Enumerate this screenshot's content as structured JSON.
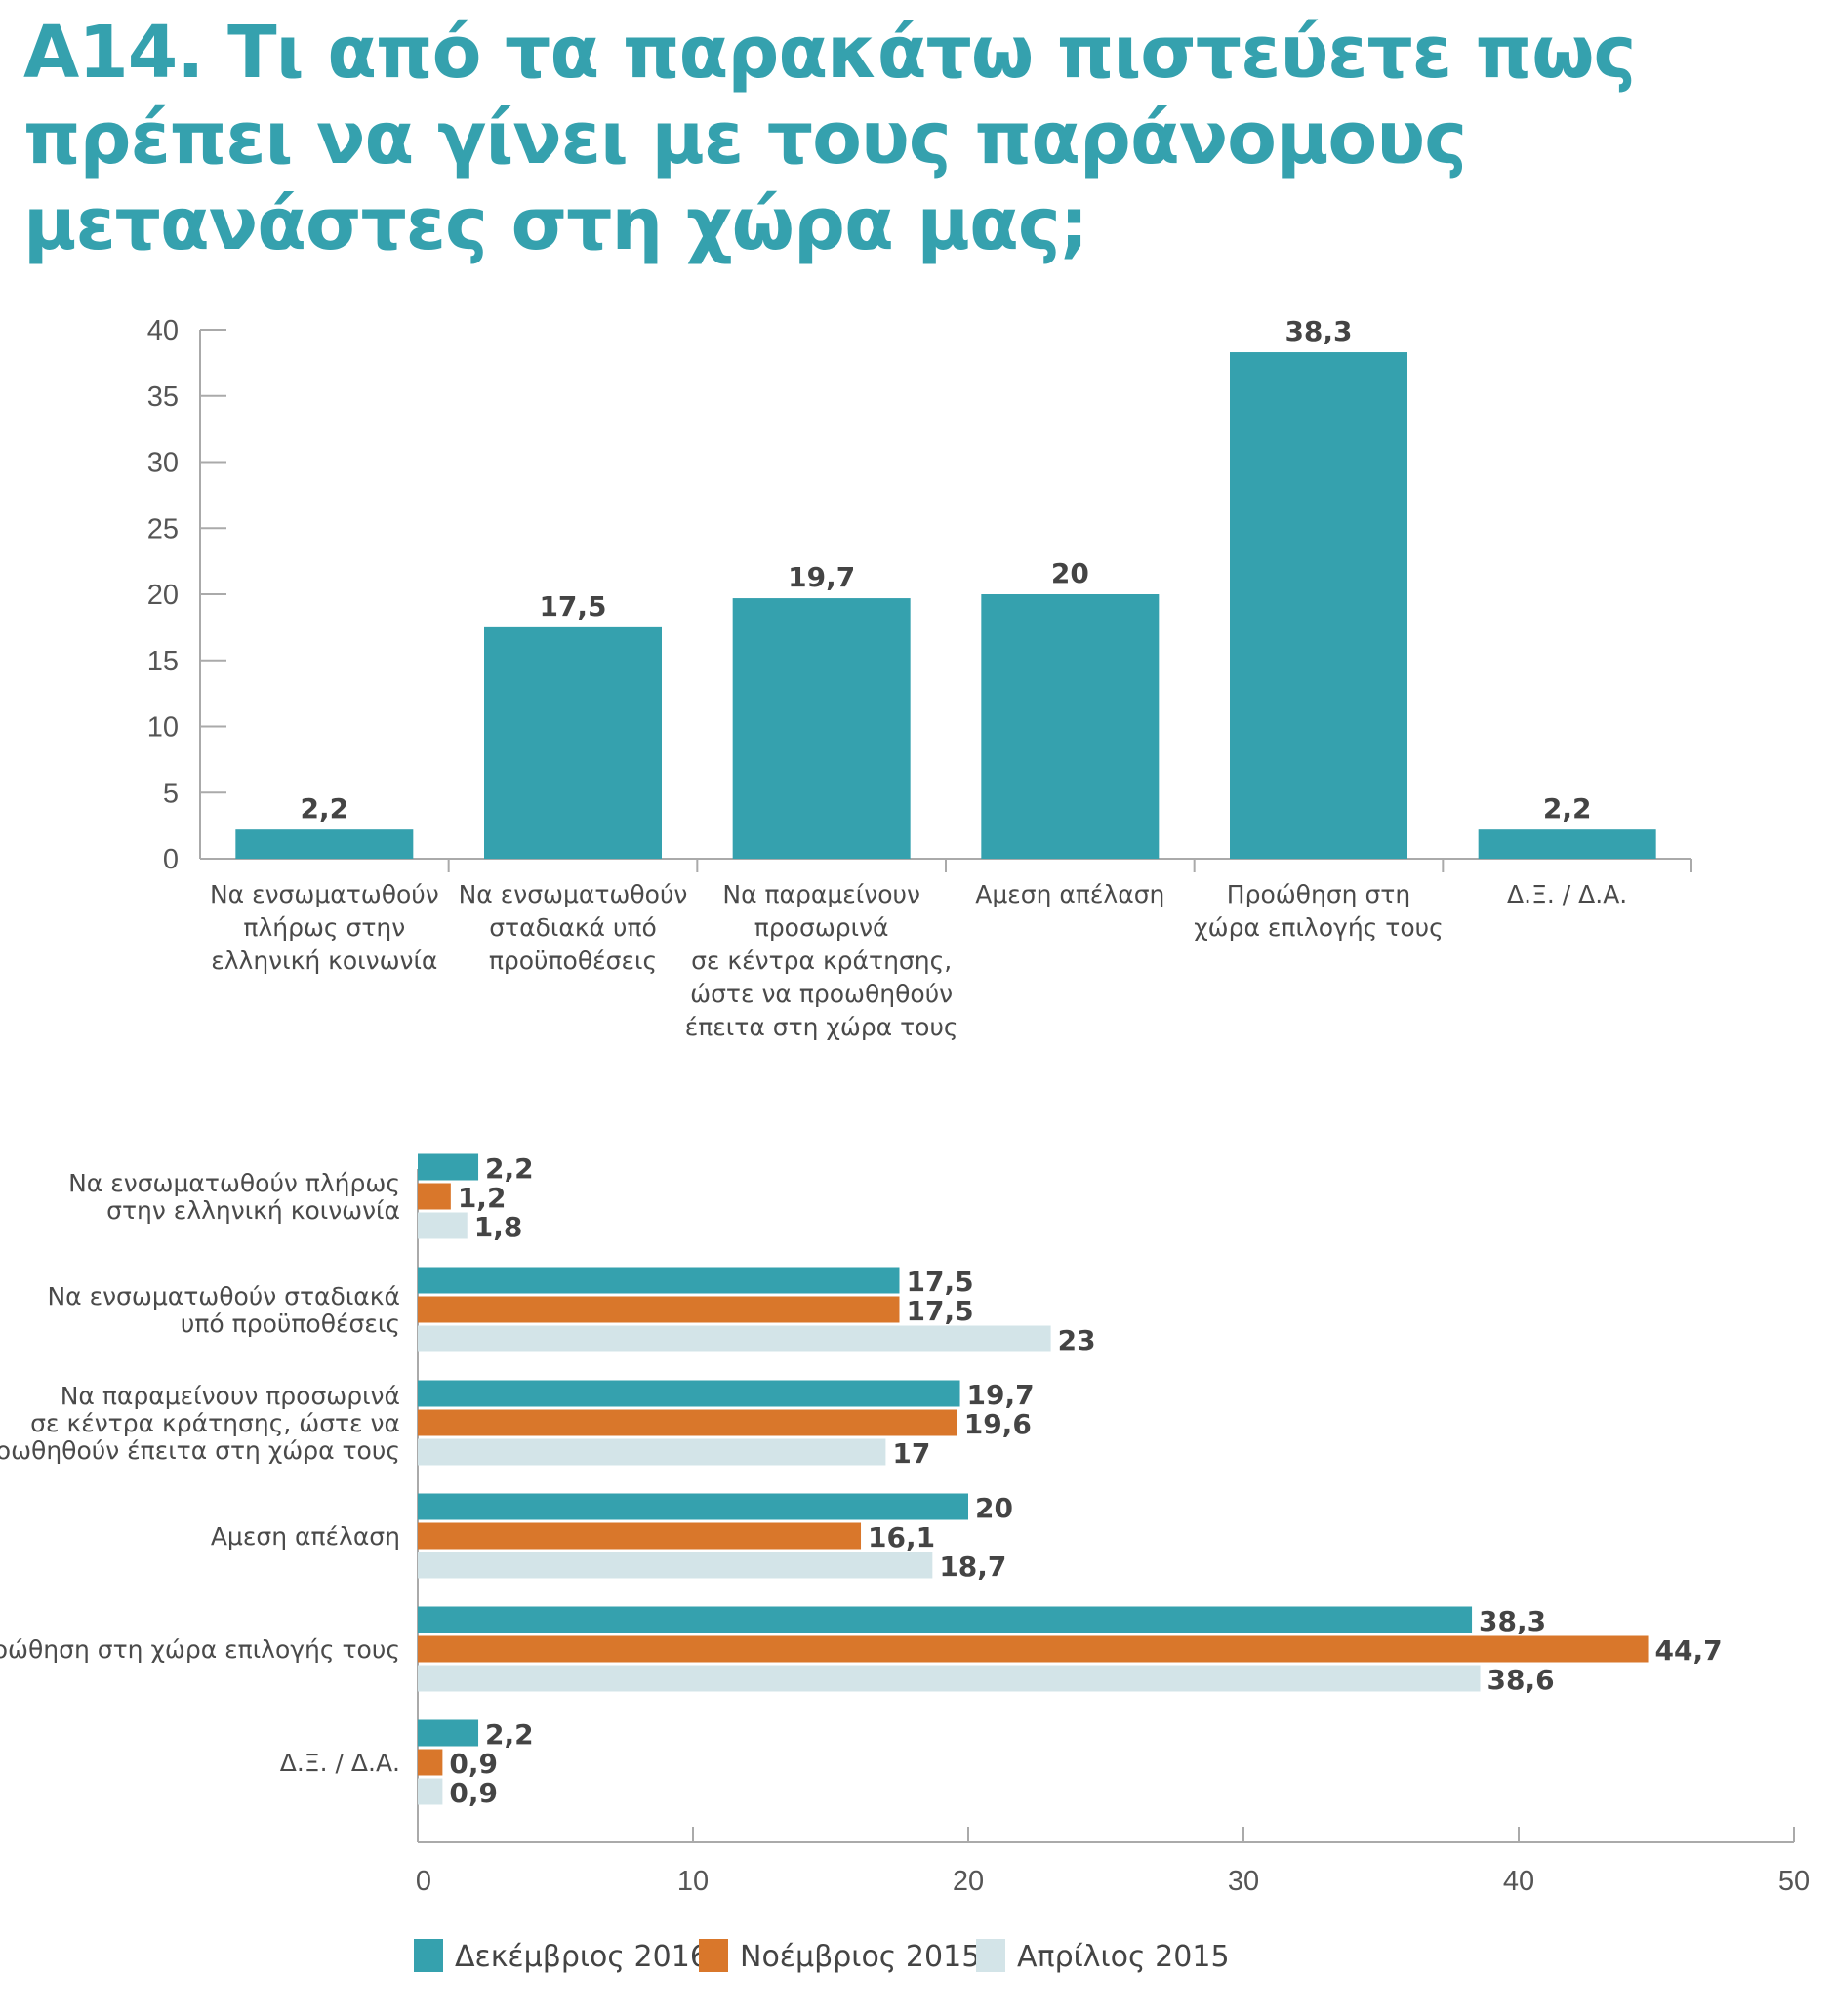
{
  "title": {
    "lines": [
      "A14. Τι από τα παρακάτω πιστεύετε πως",
      "πρέπει να γίνει με τους παράνομους",
      "μετανάστες στη χώρα μας;"
    ],
    "color": "#35a1ae"
  },
  "chart_data": [
    {
      "type": "bar",
      "orientation": "vertical",
      "categories": [
        [
          "Να ενσωματωθούν",
          "πλήρως στην",
          "ελληνική κοινωνία"
        ],
        [
          "Να ενσωματωθούν",
          "σταδιακά υπό",
          "προϋποθέσεις"
        ],
        [
          "Να παραμείνουν",
          "προσωρινά",
          "σε κέντρα κράτησης,",
          "ώστε να προωθηθούν",
          "έπειτα στη χώρα τους"
        ],
        [
          "Αμεση απέλαση"
        ],
        [
          "Προώθηση στη",
          "χώρα επιλογής τους"
        ],
        [
          "Δ.Ξ. / Δ.Α."
        ]
      ],
      "values": [
        2.2,
        17.5,
        19.7,
        20,
        38.3,
        2.2
      ],
      "value_labels": [
        "2,2",
        "17,5",
        "19,7",
        "20",
        "38,3",
        "2,2"
      ],
      "ylim": [
        0,
        40
      ],
      "yticks": [
        0,
        5,
        10,
        15,
        20,
        25,
        30,
        35,
        40
      ],
      "color": "#35a1ae",
      "grid": false
    },
    {
      "type": "bar",
      "orientation": "horizontal",
      "categories": [
        [
          "Να ενσωματωθούν πλήρως",
          "στην ελληνική κοινωνία"
        ],
        [
          "Να ενσωματωθούν σταδιακά",
          "υπό προϋποθέσεις"
        ],
        [
          "Να παραμείνουν προσωρινά",
          "σε κέντρα κράτησης, ώστε να",
          "προωθηθούν έπειτα στη χώρα τους"
        ],
        [
          "Αμεση απέλαση"
        ],
        [
          "Προώθηση στη χώρα επιλογής τους"
        ],
        [
          "Δ.Ξ. / Δ.Α."
        ]
      ],
      "series": [
        {
          "name": "Δεκέμβριος 2016",
          "color": "#35a1ae",
          "values": [
            2.2,
            17.5,
            19.7,
            20,
            38.3,
            2.2
          ],
          "value_labels": [
            "2,2",
            "17,5",
            "19,7",
            "20",
            "38,3",
            "2,2"
          ]
        },
        {
          "name": "Νοέμβριος 2015",
          "color": "#d9772b",
          "values": [
            1.2,
            17.5,
            19.6,
            16.1,
            44.7,
            0.9
          ],
          "value_labels": [
            "1,2",
            "17,5",
            "19,6",
            "16,1",
            "44,7",
            "0,9"
          ]
        },
        {
          "name": "Απρίλιος 2015",
          "color": "#d3e4e8",
          "values": [
            1.8,
            23,
            17,
            18.7,
            38.6,
            0.9
          ],
          "value_labels": [
            "1,8",
            "23",
            "17",
            "18,7",
            "38,6",
            "0,9"
          ]
        }
      ],
      "xlim": [
        0,
        50
      ],
      "xticks": [
        0,
        10,
        20,
        30,
        40,
        50
      ],
      "legend": "bottom",
      "grid": false
    }
  ]
}
